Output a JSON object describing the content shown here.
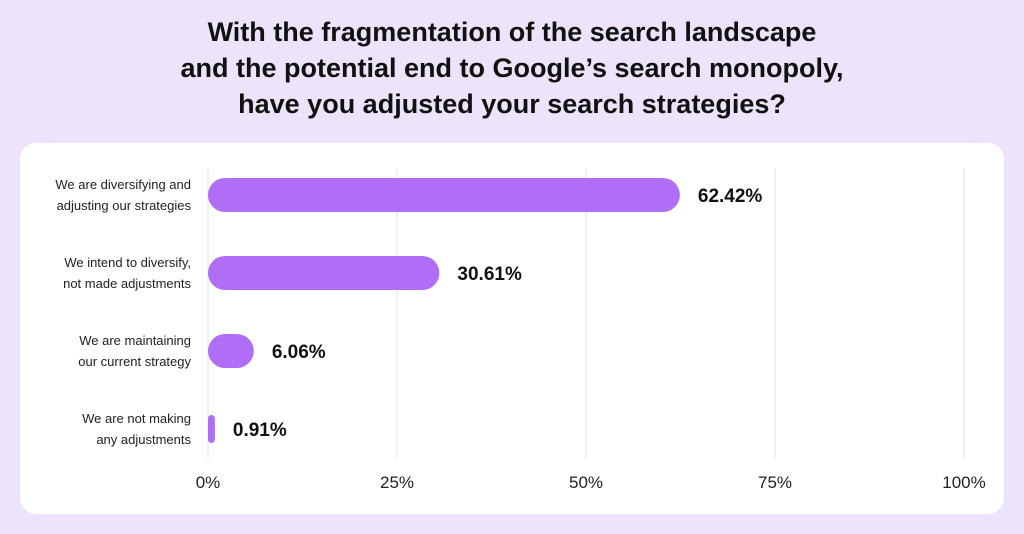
{
  "title_lines": [
    "With the fragmentation of the search landscape",
    "and the potential end to Google’s search monopoly,",
    "have you adjusted your search strategies?"
  ],
  "chart_data": {
    "type": "bar",
    "orientation": "horizontal",
    "categories": [
      [
        "We are diversifying and",
        "adjusting our strategies"
      ],
      [
        "We intend to diversify,",
        "not made adjustments"
      ],
      [
        "We are maintaining",
        "our current strategy"
      ],
      [
        "We are not making",
        "any adjustments"
      ]
    ],
    "values": [
      62.42,
      30.61,
      6.06,
      0.91
    ],
    "value_labels": [
      "62.42%",
      "30.61%",
      "6.06%",
      "0.91%"
    ],
    "xlim": [
      0,
      100
    ],
    "xticks": [
      0,
      25,
      50,
      75,
      100
    ],
    "xtick_labels": [
      "0%",
      "25%",
      "50%",
      "75%",
      "100%"
    ],
    "grid": true,
    "bar_color": "#b06ef7",
    "grid_color": "#e2e2e2"
  }
}
